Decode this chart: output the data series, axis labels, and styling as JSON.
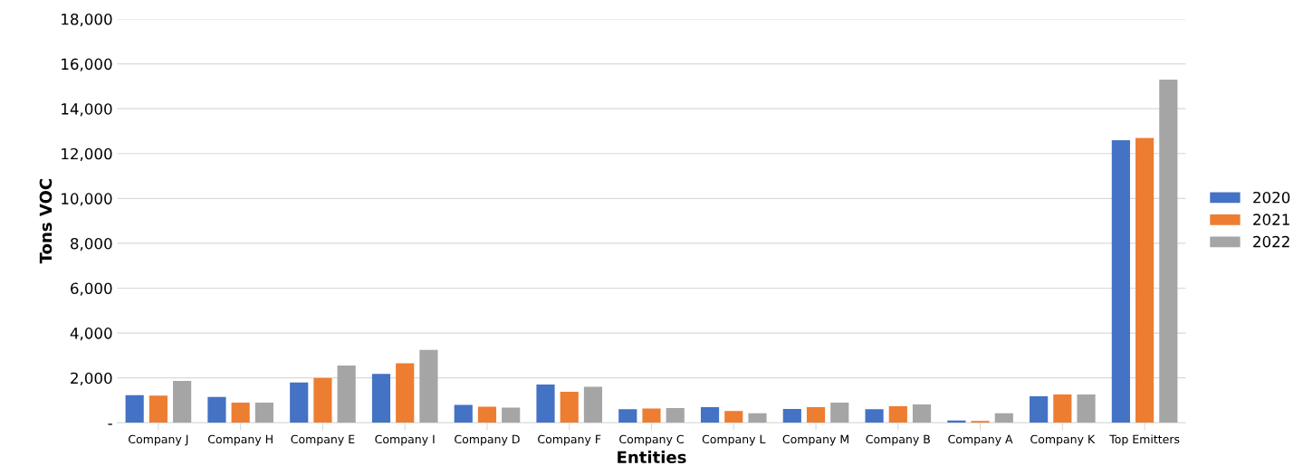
{
  "chart_data": {
    "type": "bar",
    "xlabel": "Entities",
    "ylabel": "Tons VOC",
    "categories": [
      "Company J",
      "Company H",
      "Company E",
      "Company I",
      "Company D",
      "Company F",
      "Company C",
      "Company L",
      "Company M",
      "Company B",
      "Company A",
      "Company K",
      "Top Emitters"
    ],
    "series": [
      {
        "name": "2020",
        "color": "#4472c4",
        "values": [
          1230,
          1150,
          1800,
          2180,
          800,
          1700,
          600,
          700,
          620,
          600,
          100,
          1180,
          12600
        ]
      },
      {
        "name": "2021",
        "color": "#ed7d31",
        "values": [
          1210,
          900,
          2000,
          2650,
          720,
          1380,
          640,
          520,
          700,
          740,
          80,
          1260,
          12700
        ]
      },
      {
        "name": "2022",
        "color": "#a5a5a5",
        "values": [
          1870,
          900,
          2550,
          3250,
          680,
          1600,
          660,
          420,
          900,
          820,
          420,
          1260,
          15300
        ]
      }
    ],
    "ylim": [
      0,
      18000
    ],
    "yticks": [
      {
        "value": 0,
        "label": "-"
      },
      {
        "value": 2000,
        "label": "2,000"
      },
      {
        "value": 4000,
        "label": "4,000"
      },
      {
        "value": 6000,
        "label": "6,000"
      },
      {
        "value": 8000,
        "label": "8,000"
      },
      {
        "value": 10000,
        "label": "10,000"
      },
      {
        "value": 12000,
        "label": "12,000"
      },
      {
        "value": 14000,
        "label": "14,000"
      },
      {
        "value": 16000,
        "label": "16,000"
      },
      {
        "value": 18000,
        "label": "18,000"
      }
    ],
    "grid": "y",
    "legend": "right"
  }
}
